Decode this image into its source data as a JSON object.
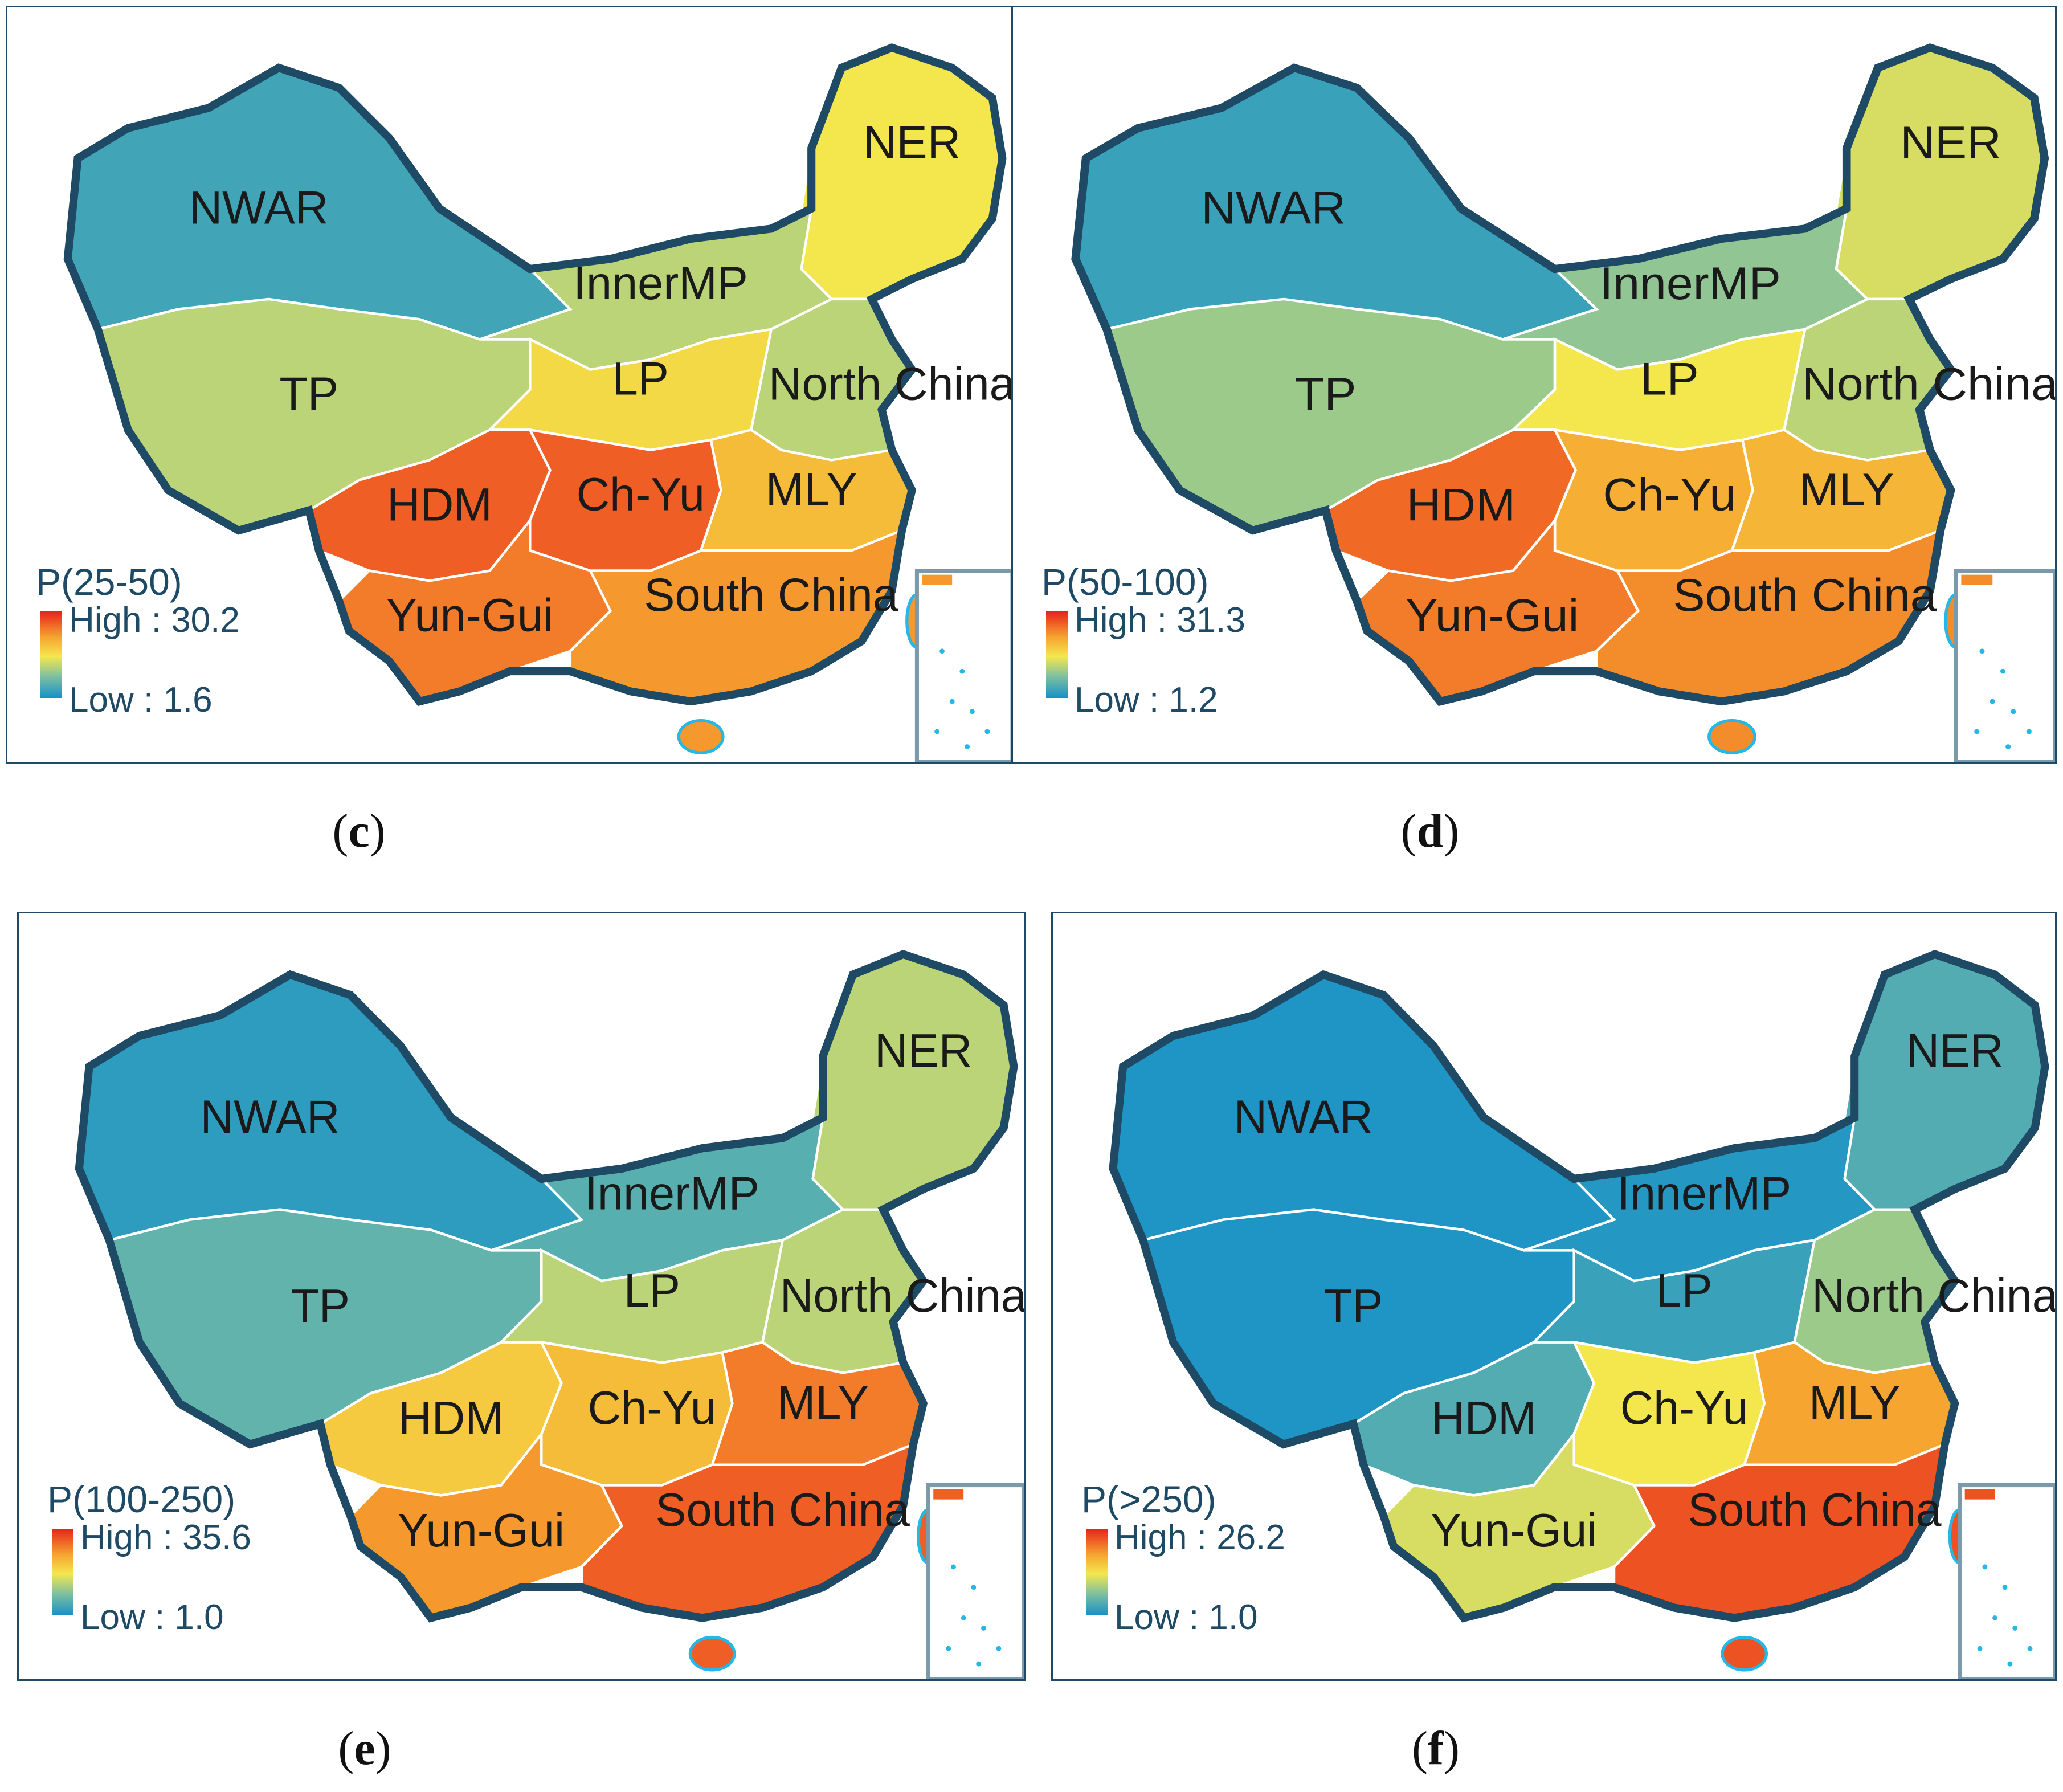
{
  "regions": {
    "nwar": "NWAR",
    "ner": "NER",
    "innermp": "InnerMP",
    "north_china": "North China",
    "tp": "TP",
    "lp": "LP",
    "hdm": "HDM",
    "ch_yu": "Ch-Yu",
    "mly": "MLY",
    "yun_gui": "Yun-Gui",
    "south_china": "South China"
  },
  "panels": [
    {
      "id": "c",
      "caption": "c",
      "legend_title": "P(25-50)",
      "high": "High : 30.2",
      "low": "Low : 1.6",
      "levels": {
        "nwar": 0.15,
        "ner": 0.55,
        "innermp": 0.45,
        "north_china": 0.45,
        "tp": 0.45,
        "lp": 0.6,
        "hdm": 0.9,
        "ch_yu": 0.9,
        "mly": 0.7,
        "yun_gui": 0.85,
        "south_china": 0.8
      }
    },
    {
      "id": "d",
      "caption": "d",
      "legend_title": "P(50-100)",
      "high": "High : 31.3",
      "low": "Low : 1.2",
      "levels": {
        "nwar": 0.12,
        "ner": 0.5,
        "innermp": 0.38,
        "north_china": 0.45,
        "tp": 0.4,
        "lp": 0.55,
        "hdm": 0.88,
        "ch_yu": 0.75,
        "mly": 0.72,
        "yun_gui": 0.85,
        "south_china": 0.82
      }
    },
    {
      "id": "e",
      "caption": "e",
      "legend_title": "P(100-250)",
      "high": "High : 35.6",
      "low": "Low : 1.0",
      "levels": {
        "nwar": 0.08,
        "ner": 0.45,
        "innermp": 0.22,
        "north_china": 0.45,
        "tp": 0.25,
        "lp": 0.45,
        "hdm": 0.65,
        "ch_yu": 0.7,
        "mly": 0.85,
        "yun_gui": 0.8,
        "south_china": 0.9
      }
    },
    {
      "id": "f",
      "caption": "f",
      "legend_title": "P(>250)",
      "high": "High : 26.2",
      "low": "Low : 1.0",
      "levels": {
        "nwar": 0.03,
        "ner": 0.2,
        "innermp": 0.05,
        "north_china": 0.4,
        "tp": 0.03,
        "lp": 0.12,
        "hdm": 0.2,
        "ch_yu": 0.55,
        "mly": 0.78,
        "yun_gui": 0.5,
        "south_china": 0.92
      }
    }
  ],
  "colors": {
    "low": "#1591c8",
    "mid": "#f4e74d",
    "high": "#e8231b",
    "boundary": "#1e4a66",
    "region_lines": "#ffffff"
  }
}
